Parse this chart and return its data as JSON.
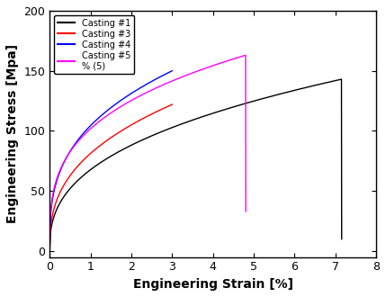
{
  "title": "",
  "xlabel": "Engineering Strain [%]",
  "ylabel": "Engineering Stress [Mpa]",
  "xlim": [
    0,
    8
  ],
  "ylim": [
    -5,
    200
  ],
  "xticks": [
    0,
    1,
    2,
    3,
    4,
    5,
    6,
    7,
    8
  ],
  "yticks": [
    0,
    50,
    100,
    150,
    200
  ],
  "legend_labels": [
    "Casting #1",
    "Casting #3",
    "Casting #4",
    "Casting #5\n% (5)"
  ],
  "colors": [
    "black",
    "red",
    "blue",
    "magenta"
  ],
  "figsize": [
    4.29,
    3.3
  ],
  "dpi": 100,
  "curve1": {
    "x_end": 7.15,
    "y_max": 143,
    "n": 0.38,
    "drop_to": 10
  },
  "curve3": {
    "x_end": 3.0,
    "y_max": 122,
    "n": 0.37
  },
  "curve4": {
    "x_end": 3.0,
    "y_max": 150,
    "n": 0.33
  },
  "curve5": {
    "x_end": 4.8,
    "y_max": 163,
    "n": 0.3,
    "drop_to": 33
  }
}
